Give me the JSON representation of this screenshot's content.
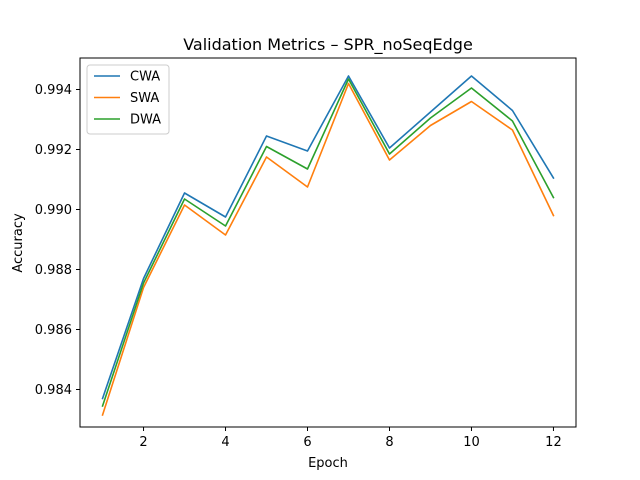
{
  "chart_data": {
    "type": "line",
    "title": "Validation Metrics – SPR_noSeqEdge",
    "xlabel": "Epoch",
    "ylabel": "Accuracy",
    "x": [
      1,
      2,
      3,
      4,
      5,
      6,
      7,
      8,
      9,
      10,
      11,
      12
    ],
    "xticks": [
      2,
      4,
      6,
      8,
      10,
      12
    ],
    "xlim": [
      0.45,
      12.55
    ],
    "yticks": [
      0.984,
      0.986,
      0.988,
      0.99,
      0.992,
      0.994
    ],
    "ytick_labels": [
      "0.984",
      "0.986",
      "0.988",
      "0.990",
      "0.992",
      "0.994"
    ],
    "ylim": [
      0.98275,
      0.99505
    ],
    "grid": false,
    "legend_position": "top-left",
    "series": [
      {
        "name": "CWA",
        "color": "#1f77b4",
        "values": [
          0.9837,
          0.9877,
          0.99055,
          0.98975,
          0.99245,
          0.99195,
          0.99445,
          0.99205,
          0.99325,
          0.99445,
          0.9933,
          0.99105
        ]
      },
      {
        "name": "SWA",
        "color": "#ff7f0e",
        "values": [
          0.98315,
          0.9874,
          0.99015,
          0.98915,
          0.99175,
          0.99075,
          0.9942,
          0.99165,
          0.9928,
          0.9936,
          0.99265,
          0.9898
        ]
      },
      {
        "name": "DWA",
        "color": "#2ca02c",
        "values": [
          0.98345,
          0.98755,
          0.99035,
          0.98945,
          0.9921,
          0.99135,
          0.99435,
          0.99185,
          0.99305,
          0.99405,
          0.99295,
          0.9904
        ]
      }
    ]
  }
}
